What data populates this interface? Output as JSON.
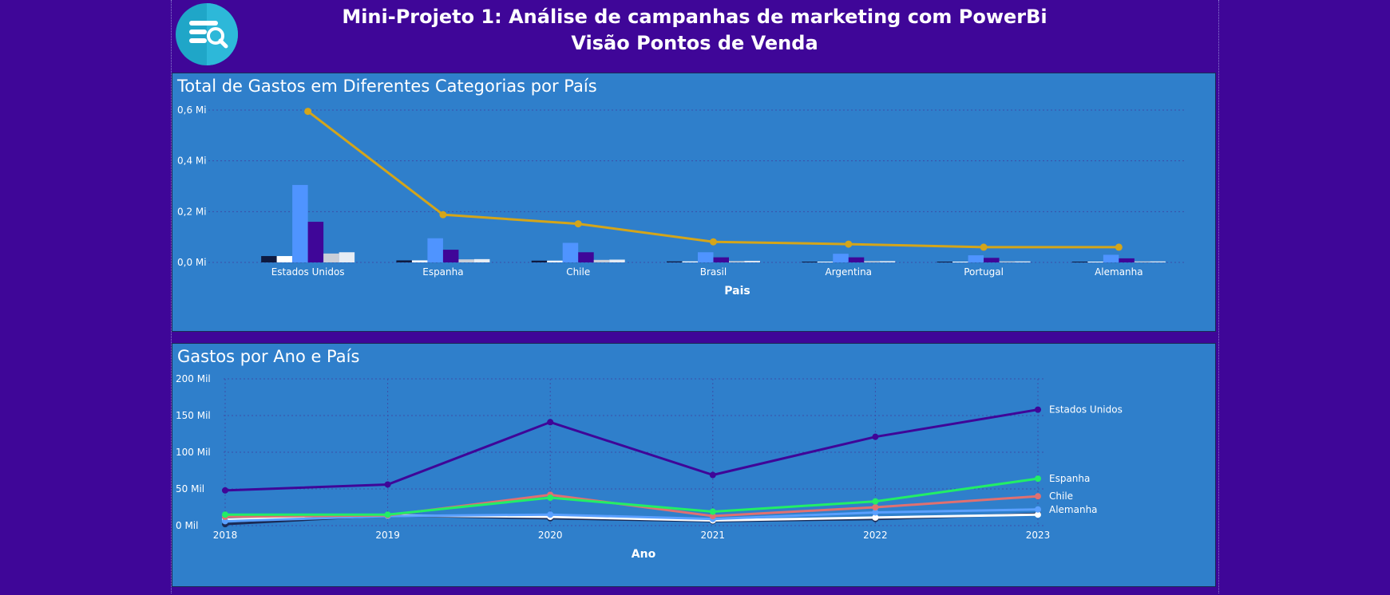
{
  "header": {
    "title_line1": "Mini-Projeto 1: Análise de campanhas de marketing com PowerBi",
    "title_line2": "Visão Pontos de Venda",
    "logo_icon": "search-database-icon"
  },
  "colors": {
    "page_bg": "#3f0698",
    "panel_bg": "#2f7fcb",
    "gridline": "#3b4fa8",
    "line_total": "#d4a51a"
  },
  "chart_data": [
    {
      "type": "bar",
      "title": "Total de Gastos em Diferentes Categorias por País",
      "xlabel": "Pais",
      "ylabel": "",
      "grid": true,
      "ylim": [
        0,
        0.6
      ],
      "yticks": [
        {
          "value": 0.6,
          "label": "0,6 Mi"
        },
        {
          "value": 0.4,
          "label": "0,4 Mi"
        },
        {
          "value": 0.2,
          "label": "0,2 Mi"
        },
        {
          "value": 0.0,
          "label": "0,0 Mi"
        }
      ],
      "categories": [
        "Estados Unidos",
        "Espanha",
        "Chile",
        "Brasil",
        "Argentina",
        "Portugal",
        "Alemanha"
      ],
      "series": [
        {
          "color": "#0e1a40",
          "values": [
            0.025,
            0.008,
            0.007,
            0.004,
            0.003,
            0.003,
            0.003
          ]
        },
        {
          "color": "#ffffff",
          "values": [
            0.025,
            0.008,
            0.007,
            0.004,
            0.003,
            0.003,
            0.003
          ]
        },
        {
          "color": "#4f94ff",
          "values": [
            0.305,
            0.095,
            0.077,
            0.04,
            0.034,
            0.028,
            0.03
          ]
        },
        {
          "color": "#3f0698",
          "values": [
            0.16,
            0.05,
            0.04,
            0.02,
            0.02,
            0.018,
            0.016
          ]
        },
        {
          "color": "#c9ced8",
          "values": [
            0.035,
            0.012,
            0.01,
            0.005,
            0.005,
            0.004,
            0.004
          ]
        },
        {
          "color": "#e6ecf4",
          "values": [
            0.04,
            0.013,
            0.011,
            0.006,
            0.005,
            0.004,
            0.004
          ]
        }
      ],
      "line": {
        "color": "#d4a51a",
        "values": [
          0.595,
          0.188,
          0.152,
          0.081,
          0.072,
          0.06,
          0.06
        ]
      }
    },
    {
      "type": "line",
      "title": "Gastos por Ano e País",
      "xlabel": "Ano",
      "ylabel": "",
      "grid": true,
      "ylim": [
        0,
        200
      ],
      "yticks": [
        {
          "value": 200,
          "label": "200 Mil"
        },
        {
          "value": 150,
          "label": "150 Mil"
        },
        {
          "value": 100,
          "label": "100 Mil"
        },
        {
          "value": 50,
          "label": "50 Mil"
        },
        {
          "value": 0,
          "label": "0 Mil"
        }
      ],
      "x": [
        "2018",
        "2019",
        "2020",
        "2021",
        "2022",
        "2023"
      ],
      "series": [
        {
          "name": "Estados Unidos",
          "color": "#3f0698",
          "values": [
            48,
            56,
            141,
            69,
            121,
            158
          ]
        },
        {
          "name": "",
          "color": "#1a2a55",
          "values": [
            2,
            14,
            10,
            6,
            9,
            16
          ]
        },
        {
          "name": "",
          "color": "#ffffff",
          "values": [
            8,
            14,
            12,
            7,
            11,
            15
          ]
        },
        {
          "name": "Alemanha",
          "color": "#5aa0ff",
          "values": [
            6,
            13,
            15,
            9,
            18,
            22
          ]
        },
        {
          "name": "Chile",
          "color": "#e07070",
          "values": [
            12,
            14,
            42,
            13,
            25,
            40
          ]
        },
        {
          "name": "Espanha",
          "color": "#22ee66",
          "values": [
            15,
            15,
            38,
            19,
            33,
            64
          ]
        }
      ]
    }
  ]
}
